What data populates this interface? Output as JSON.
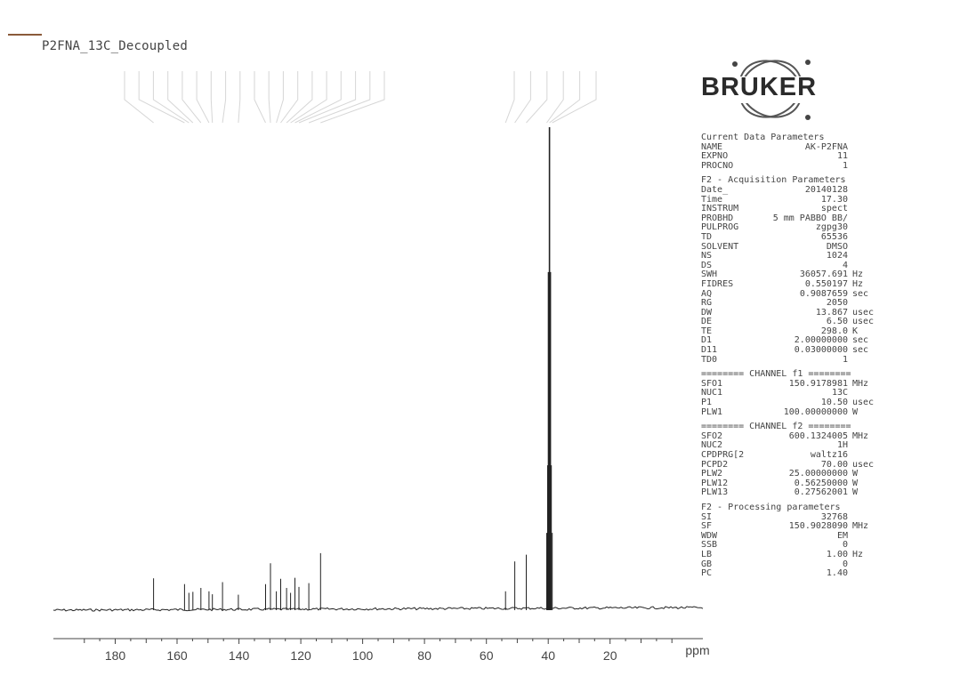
{
  "title": "P2FNA_13C_Decoupled",
  "logo": {
    "text": "BRUKER"
  },
  "parameters": {
    "current": {
      "heading": "Current Data Parameters",
      "rows": [
        {
          "k": "NAME",
          "v": "AK-P2FNA",
          "u": ""
        },
        {
          "k": "EXPNO",
          "v": "11",
          "u": ""
        },
        {
          "k": "PROCNO",
          "v": "1",
          "u": ""
        }
      ]
    },
    "acquisition": {
      "heading": "F2 - Acquisition Parameters",
      "rows": [
        {
          "k": "Date_",
          "v": "20140128",
          "u": ""
        },
        {
          "k": "Time",
          "v": "17.30",
          "u": ""
        },
        {
          "k": "INSTRUM",
          "v": "spect",
          "u": ""
        },
        {
          "k": "PROBHD",
          "v": "5 mm PABBO BB/",
          "u": ""
        },
        {
          "k": "PULPROG",
          "v": "zgpg30",
          "u": ""
        },
        {
          "k": "TD",
          "v": "65536",
          "u": ""
        },
        {
          "k": "SOLVENT",
          "v": "DMSO",
          "u": ""
        },
        {
          "k": "NS",
          "v": "1024",
          "u": ""
        },
        {
          "k": "DS",
          "v": "4",
          "u": ""
        },
        {
          "k": "SWH",
          "v": "36057.691",
          "u": "Hz"
        },
        {
          "k": "FIDRES",
          "v": "0.550197",
          "u": "Hz"
        },
        {
          "k": "AQ",
          "v": "0.9087659",
          "u": "sec"
        },
        {
          "k": "RG",
          "v": "2050",
          "u": ""
        },
        {
          "k": "DW",
          "v": "13.867",
          "u": "usec"
        },
        {
          "k": "DE",
          "v": "6.50",
          "u": "usec"
        },
        {
          "k": "TE",
          "v": "298.0",
          "u": "K"
        },
        {
          "k": "D1",
          "v": "2.00000000",
          "u": "sec"
        },
        {
          "k": "D11",
          "v": "0.03000000",
          "u": "sec"
        },
        {
          "k": "TD0",
          "v": "1",
          "u": ""
        }
      ]
    },
    "channel_f1": {
      "heading": "======== CHANNEL f1 ========",
      "rows": [
        {
          "k": "SFO1",
          "v": "150.9178981",
          "u": "MHz"
        },
        {
          "k": "NUC1",
          "v": "13C",
          "u": ""
        },
        {
          "k": "P1",
          "v": "10.50",
          "u": "usec"
        },
        {
          "k": "PLW1",
          "v": "100.00000000",
          "u": "W"
        }
      ]
    },
    "channel_f2": {
      "heading": "======== CHANNEL f2 ========",
      "rows": [
        {
          "k": "SFO2",
          "v": "600.1324005",
          "u": "MHz"
        },
        {
          "k": "NUC2",
          "v": "1H",
          "u": ""
        },
        {
          "k": "CPDPRG[2",
          "v": "waltz16",
          "u": ""
        },
        {
          "k": "PCPD2",
          "v": "70.00",
          "u": "usec"
        },
        {
          "k": "PLW2",
          "v": "25.00000000",
          "u": "W"
        },
        {
          "k": "PLW12",
          "v": "0.56250000",
          "u": "W"
        },
        {
          "k": "PLW13",
          "v": "0.27562001",
          "u": "W"
        }
      ]
    },
    "processing": {
      "heading": "F2 - Processing parameters",
      "rows": [
        {
          "k": "SI",
          "v": "32768",
          "u": ""
        },
        {
          "k": "SF",
          "v": "150.9028090",
          "u": "MHz"
        },
        {
          "k": "WDW",
          "v": "EM",
          "u": ""
        },
        {
          "k": "SSB",
          "v": "0",
          "u": ""
        },
        {
          "k": "LB",
          "v": "1.00",
          "u": "Hz"
        },
        {
          "k": "GB",
          "v": "0",
          "u": ""
        },
        {
          "k": "PC",
          "v": "1.40",
          "u": ""
        }
      ]
    }
  },
  "chart_data": {
    "type": "line",
    "title": "P2FNA_13C_Decoupled",
    "xlabel": "ppm",
    "ylabel": "",
    "xlim": [
      200,
      -10
    ],
    "x_reversed": true,
    "ylim": [
      0,
      1
    ],
    "grid": false,
    "x_ticks": [
      180,
      160,
      140,
      120,
      100,
      80,
      60,
      40,
      20
    ],
    "peaks": [
      {
        "ppm": 167.6,
        "height": 0.066
      },
      {
        "ppm": 157.6,
        "height": 0.054
      },
      {
        "ppm": 156.2,
        "height": 0.036
      },
      {
        "ppm": 154.9,
        "height": 0.038
      },
      {
        "ppm": 152.3,
        "height": 0.046
      },
      {
        "ppm": 149.7,
        "height": 0.039
      },
      {
        "ppm": 148.6,
        "height": 0.033
      },
      {
        "ppm": 145.3,
        "height": 0.058
      },
      {
        "ppm": 140.2,
        "height": 0.032
      },
      {
        "ppm": 131.4,
        "height": 0.054
      },
      {
        "ppm": 129.8,
        "height": 0.097
      },
      {
        "ppm": 127.9,
        "height": 0.039
      },
      {
        "ppm": 126.5,
        "height": 0.065
      },
      {
        "ppm": 124.6,
        "height": 0.046
      },
      {
        "ppm": 123.3,
        "height": 0.036
      },
      {
        "ppm": 121.9,
        "height": 0.067
      },
      {
        "ppm": 120.6,
        "height": 0.048
      },
      {
        "ppm": 117.4,
        "height": 0.056
      },
      {
        "ppm": 113.6,
        "height": 0.118
      },
      {
        "ppm": 53.8,
        "height": 0.039
      },
      {
        "ppm": 50.8,
        "height": 0.101
      },
      {
        "ppm": 47.1,
        "height": 0.115
      },
      {
        "ppm": 40.5,
        "height": 0.16
      },
      {
        "ppm": 40.2,
        "height": 0.3
      },
      {
        "ppm": 39.9,
        "height": 0.7
      },
      {
        "ppm": 39.6,
        "height": 1.0
      },
      {
        "ppm": 39.3,
        "height": 0.7
      },
      {
        "ppm": 39.0,
        "height": 0.3
      },
      {
        "ppm": 38.7,
        "height": 0.16
      }
    ]
  }
}
